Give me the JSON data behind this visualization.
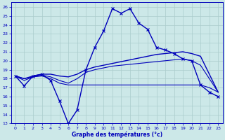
{
  "xlabel": "Graphe des températures (°c)",
  "bg_color": "#cce8e8",
  "grid_color": "#aacccc",
  "line_color": "#0000bb",
  "xlim": [
    -0.5,
    23.5
  ],
  "ylim": [
    13,
    26.5
  ],
  "yticks": [
    13,
    14,
    15,
    16,
    17,
    18,
    19,
    20,
    21,
    22,
    23,
    24,
    25,
    26
  ],
  "xticks": [
    0,
    1,
    2,
    3,
    4,
    5,
    6,
    7,
    8,
    9,
    10,
    11,
    12,
    13,
    14,
    15,
    16,
    17,
    18,
    19,
    20,
    21,
    22,
    23
  ],
  "series": [
    {
      "x": [
        0,
        1,
        2,
        3,
        4,
        5,
        6,
        7,
        8,
        9,
        10,
        11,
        12,
        13,
        14,
        15,
        16,
        17,
        18,
        19,
        20,
        21,
        22,
        23
      ],
      "y": [
        18.3,
        17.2,
        18.3,
        18.5,
        17.8,
        15.5,
        13.0,
        14.5,
        19.0,
        21.5,
        23.3,
        25.8,
        25.3,
        25.8,
        24.2,
        23.5,
        21.5,
        21.2,
        20.8,
        20.2,
        20.0,
        17.3,
        16.5,
        16.0
      ],
      "marker": "x",
      "markersize": 3,
      "linewidth": 1.0
    },
    {
      "x": [
        0,
        1,
        2,
        3,
        4,
        5,
        6,
        7,
        8,
        9,
        10,
        11,
        12,
        13,
        14,
        15,
        16,
        17,
        18,
        19,
        20,
        21,
        22,
        23
      ],
      "y": [
        18.3,
        18.0,
        18.3,
        18.5,
        18.5,
        18.3,
        18.2,
        18.5,
        19.0,
        19.3,
        19.5,
        19.7,
        19.9,
        20.1,
        20.3,
        20.5,
        20.7,
        20.8,
        20.9,
        21.0,
        20.8,
        20.5,
        18.5,
        16.5
      ],
      "marker": null,
      "markersize": 0,
      "linewidth": 1.0
    },
    {
      "x": [
        0,
        1,
        2,
        3,
        4,
        5,
        6,
        7,
        8,
        9,
        10,
        11,
        12,
        13,
        14,
        15,
        16,
        17,
        18,
        19,
        20,
        21,
        22,
        23
      ],
      "y": [
        18.3,
        18.0,
        18.2,
        18.4,
        18.2,
        17.8,
        17.5,
        18.0,
        18.7,
        19.0,
        19.2,
        19.4,
        19.5,
        19.6,
        19.7,
        19.8,
        19.9,
        20.0,
        20.1,
        20.2,
        20.0,
        19.5,
        18.0,
        16.5
      ],
      "marker": null,
      "markersize": 0,
      "linewidth": 0.8
    },
    {
      "x": [
        0,
        1,
        2,
        3,
        4,
        5,
        6,
        7,
        8,
        9,
        10,
        11,
        12,
        13,
        14,
        15,
        16,
        17,
        18,
        19,
        20,
        21,
        22,
        23
      ],
      "y": [
        18.3,
        17.8,
        18.2,
        18.3,
        18.0,
        17.5,
        17.3,
        17.3,
        17.3,
        17.3,
        17.3,
        17.3,
        17.3,
        17.3,
        17.3,
        17.3,
        17.3,
        17.3,
        17.3,
        17.3,
        17.3,
        17.3,
        17.0,
        16.5
      ],
      "marker": null,
      "markersize": 0,
      "linewidth": 0.8
    }
  ]
}
